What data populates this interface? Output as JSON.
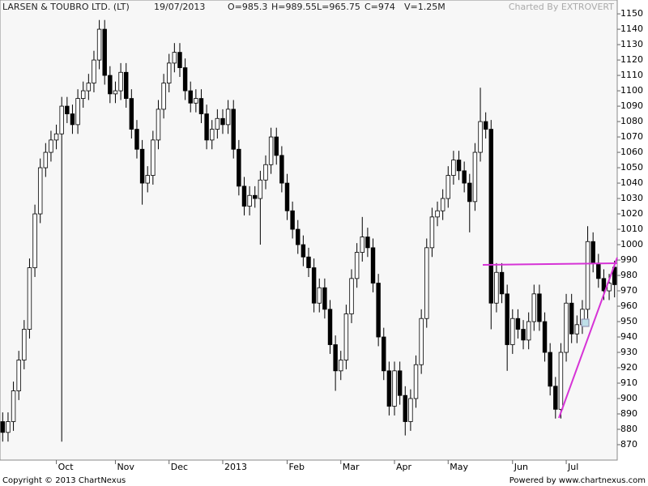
{
  "chart_data": {
    "type": "candlestick",
    "title": "LARSEN & TOUBRO LTD. (LT)",
    "date": "19/07/2013",
    "open_label": "O=985.3",
    "high_label": "H=989.55",
    "low_label": "L=965.75",
    "close_label": "C=974",
    "volume_label": "V=1.25M",
    "credit": "Charted By EXTROVERT",
    "copyright": "Copyright © 2013 ChartNexus",
    "powered_by": "Powered by www.chartnexus.com",
    "categories": [
      null,
      null,
      null,
      null,
      null,
      null,
      null,
      null,
      null,
      null,
      "Oct",
      null,
      null,
      null,
      null,
      null,
      null,
      null,
      null,
      null,
      null,
      "Nov",
      null,
      null,
      null,
      null,
      null,
      null,
      null,
      null,
      null,
      "Dec",
      null,
      null,
      null,
      null,
      null,
      null,
      null,
      null,
      null,
      "2013",
      null,
      null,
      null,
      null,
      null,
      null,
      null,
      null,
      null,
      null,
      null,
      "Feb",
      null,
      null,
      null,
      null,
      null,
      null,
      null,
      null,
      null,
      "Mar",
      null,
      null,
      null,
      null,
      null,
      null,
      null,
      null,
      null,
      "Apr",
      null,
      null,
      null,
      null,
      null,
      null,
      null,
      null,
      null,
      "May",
      null,
      null,
      null,
      null,
      null,
      null,
      null,
      null,
      null,
      null,
      null,
      "Jun",
      null,
      null,
      null,
      null,
      null,
      null,
      null,
      null,
      null,
      "Jul",
      null,
      null,
      null,
      null,
      null,
      null,
      null,
      null,
      null
    ],
    "open": [
      885,
      878,
      885,
      905,
      925,
      945,
      985,
      1020,
      1050,
      1060,
      1068,
      1072,
      1090,
      1085,
      1078,
      1095,
      1100,
      1105,
      1120,
      1140,
      1110,
      1098,
      1100,
      1112,
      1095,
      1075,
      1062,
      1040,
      1045,
      1068,
      1088,
      1105,
      1118,
      1125,
      1115,
      1100,
      1092,
      1095,
      1085,
      1068,
      1075,
      1082,
      1078,
      1088,
      1062,
      1038,
      1025,
      1032,
      1030,
      1042,
      1052,
      1070,
      1058,
      1040,
      1022,
      1010,
      1000,
      992,
      985,
      962,
      972,
      958,
      935,
      918,
      925,
      955,
      978,
      995,
      1005,
      998,
      975,
      940,
      918,
      895,
      918,
      902,
      885,
      900,
      922,
      952,
      998,
      1018,
      1022,
      1030,
      1045,
      1055,
      1048,
      1040,
      1028,
      1060,
      1080,
      1075,
      962,
      982,
      968,
      935,
      952,
      945,
      938,
      950,
      968,
      950,
      930,
      908,
      893,
      930,
      962,
      942,
      948,
      958,
      1002,
      988,
      978,
      970,
      985.3
    ],
    "high": [
      891,
      891,
      911,
      931,
      951,
      991,
      1026,
      1056,
      1066,
      1074,
      1078,
      1096,
      1096,
      1091,
      1101,
      1106,
      1111,
      1126,
      1146,
      1146,
      1116,
      1106,
      1118,
      1118,
      1101,
      1081,
      1068,
      1051,
      1074,
      1094,
      1111,
      1124,
      1131,
      1131,
      1121,
      1106,
      1101,
      1101,
      1091,
      1081,
      1088,
      1088,
      1094,
      1094,
      1068,
      1044,
      1038,
      1038,
      1048,
      1058,
      1076,
      1076,
      1064,
      1046,
      1028,
      1016,
      1006,
      998,
      991,
      978,
      978,
      964,
      941,
      931,
      961,
      984,
      1001,
      1018,
      1011,
      1004,
      981,
      946,
      924,
      924,
      924,
      908,
      906,
      928,
      958,
      1004,
      1024,
      1028,
      1036,
      1051,
      1061,
      1061,
      1054,
      1046,
      1066,
      1102,
      1086,
      1081,
      988,
      988,
      974,
      958,
      958,
      951,
      956,
      974,
      974,
      956,
      936,
      914,
      936,
      968,
      968,
      954,
      964,
      1012,
      1008,
      994,
      984,
      981,
      989.55
    ],
    "low": [
      872,
      872,
      879,
      899,
      919,
      939,
      979,
      1014,
      1044,
      1054,
      1062,
      872,
      1079,
      1072,
      1072,
      1089,
      1094,
      1099,
      1114,
      1104,
      1092,
      1092,
      1094,
      1089,
      1069,
      1056,
      1026,
      1034,
      1039,
      1062,
      1082,
      1099,
      1112,
      1109,
      1094,
      1086,
      1086,
      1079,
      1062,
      1062,
      1069,
      1072,
      1072,
      1056,
      1032,
      1019,
      1019,
      1024,
      1000,
      1036,
      1046,
      1052,
      1034,
      1016,
      1004,
      994,
      986,
      979,
      956,
      956,
      952,
      929,
      905,
      912,
      919,
      949,
      972,
      989,
      992,
      969,
      934,
      912,
      889,
      889,
      896,
      876,
      879,
      894,
      916,
      946,
      992,
      1012,
      1016,
      1024,
      1039,
      1042,
      1034,
      1008,
      1022,
      1054,
      1069,
      945,
      956,
      962,
      918,
      929,
      939,
      932,
      932,
      944,
      944,
      924,
      902,
      887,
      887,
      924,
      936,
      936,
      942,
      952,
      982,
      972,
      964,
      964,
      965.75
    ],
    "close": [
      878,
      885,
      905,
      925,
      945,
      985,
      1020,
      1050,
      1060,
      1068,
      1072,
      1090,
      1085,
      1078,
      1095,
      1100,
      1105,
      1120,
      1140,
      1110,
      1098,
      1100,
      1112,
      1095,
      1075,
      1062,
      1040,
      1045,
      1068,
      1088,
      1105,
      1118,
      1125,
      1115,
      1100,
      1092,
      1095,
      1085,
      1068,
      1075,
      1082,
      1078,
      1088,
      1062,
      1038,
      1025,
      1032,
      1030,
      1042,
      1052,
      1070,
      1058,
      1040,
      1022,
      1010,
      1000,
      992,
      985,
      962,
      972,
      958,
      935,
      918,
      925,
      955,
      978,
      995,
      1005,
      998,
      975,
      940,
      918,
      895,
      918,
      902,
      885,
      900,
      922,
      952,
      998,
      1018,
      1022,
      1030,
      1045,
      1055,
      1048,
      1040,
      1028,
      1060,
      1080,
      1075,
      962,
      982,
      968,
      935,
      952,
      945,
      938,
      950,
      968,
      950,
      930,
      908,
      893,
      930,
      962,
      942,
      948,
      958,
      1002,
      988,
      978,
      970,
      975,
      974
    ],
    "ylim": [
      860,
      1159
    ],
    "yticks": [
      870,
      880,
      890,
      900,
      910,
      920,
      930,
      940,
      950,
      960,
      970,
      980,
      990,
      1000,
      1010,
      1020,
      1030,
      1040,
      1050,
      1060,
      1070,
      1080,
      1090,
      1100,
      1110,
      1120,
      1130,
      1140,
      1150
    ],
    "up_color": "#ffffff",
    "down_color": "#000000",
    "outline_color": "#000000"
  }
}
